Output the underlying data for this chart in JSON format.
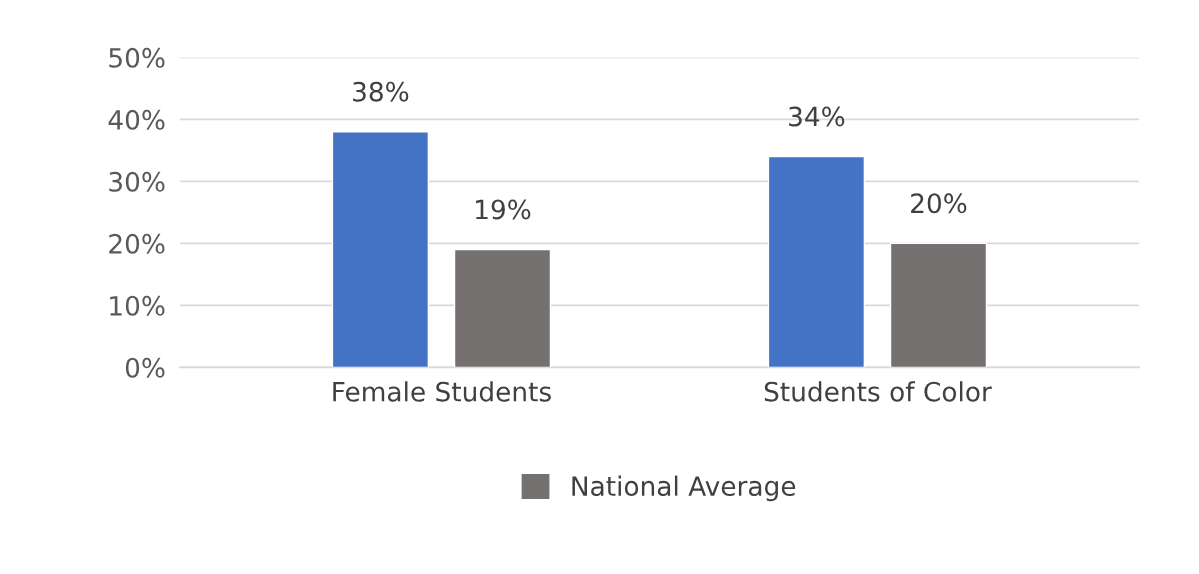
{
  "chart_data": {
    "type": "bar",
    "categories": [
      "Female Students",
      "Students of Color"
    ],
    "series": [
      {
        "color": "#4472c4",
        "values": [
          38,
          34
        ],
        "value_labels": [
          "38%",
          "34%"
        ]
      },
      {
        "name": "National Average",
        "color": "#767171",
        "values": [
          19,
          20
        ],
        "value_labels": [
          "19%",
          "20%"
        ]
      }
    ],
    "ylim": [
      0,
      50
    ],
    "yticks": [
      {
        "value": 0,
        "label": "0%"
      },
      {
        "value": 10,
        "label": "10%"
      },
      {
        "value": 20,
        "label": "20%"
      },
      {
        "value": 30,
        "label": "30%"
      },
      {
        "value": 40,
        "label": "40%"
      },
      {
        "value": 50,
        "label": "50%"
      }
    ],
    "grid": "y",
    "legend": "bottom"
  }
}
